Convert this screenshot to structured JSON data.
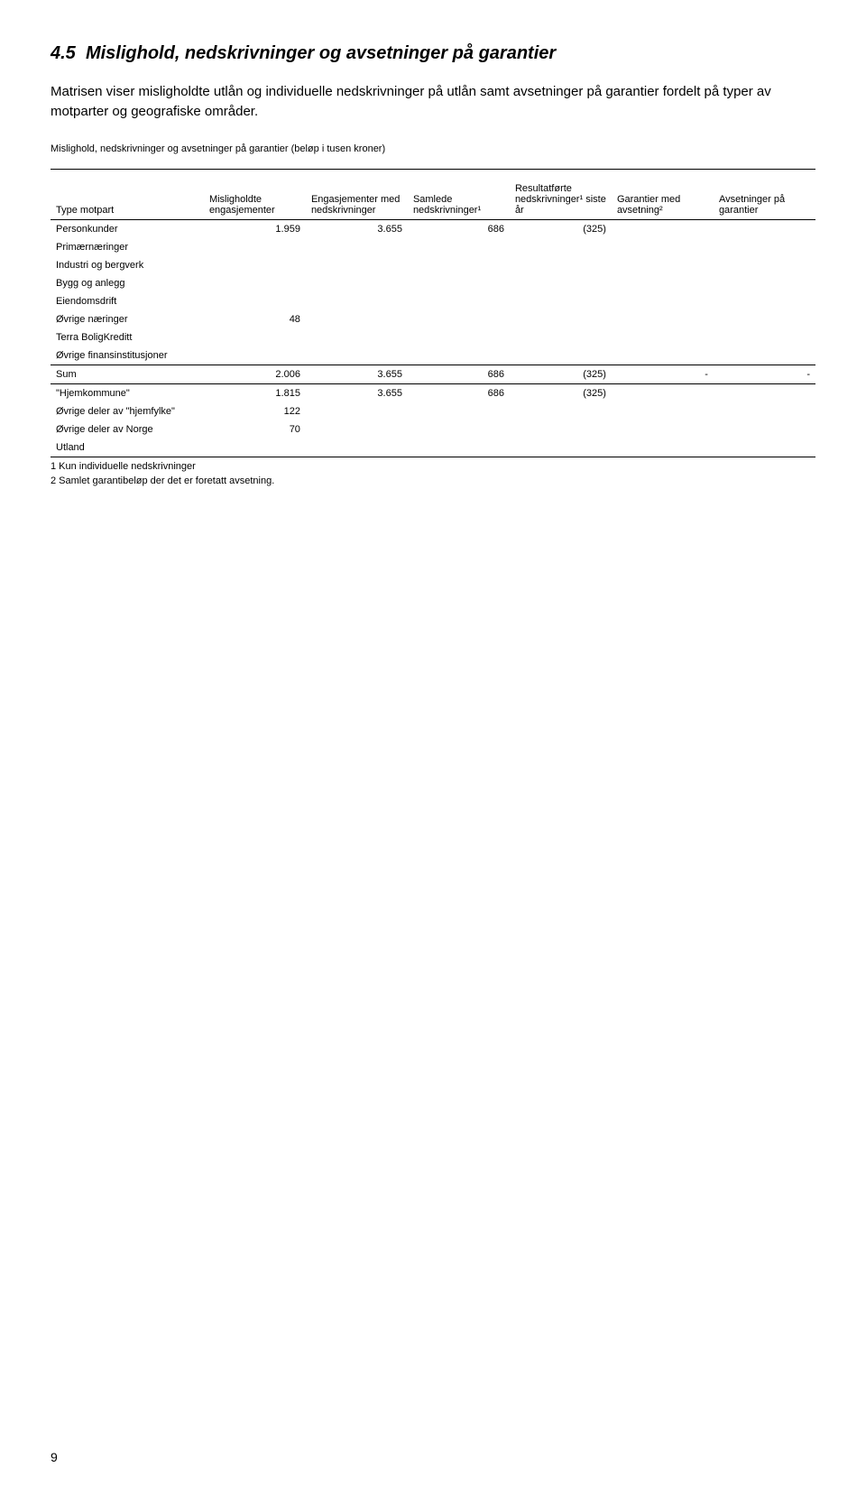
{
  "section": {
    "number": "4.5",
    "title": "Mislighold, nedskrivninger og avsetninger på garantier",
    "intro": "Matrisen viser misligholdte utlån og individuelle nedskrivninger på utlån samt avsetninger på garantier fordelt på typer av motparter og geografiske områder.",
    "table_caption": "Mislighold, nedskrivninger og avsetninger på garantier (beløp i tusen kroner)"
  },
  "columns": [
    "Type motpart",
    "Misligholdte engasjementer",
    "Engasjementer med nedskrivninger",
    "Samlede nedskrivninger¹",
    "Resultatførte nedskrivninger¹ siste år",
    "Garantier med avsetning²",
    "Avsetninger på garantier"
  ],
  "body_rows": [
    {
      "label": "Personkunder",
      "v": [
        "1.959",
        "3.655",
        "686",
        "(325)",
        "",
        ""
      ]
    },
    {
      "label": "Primærnæringer",
      "v": [
        "",
        "",
        "",
        "",
        "",
        ""
      ]
    },
    {
      "label": "Industri og bergverk",
      "v": [
        "",
        "",
        "",
        "",
        "",
        ""
      ]
    },
    {
      "label": "Bygg og anlegg",
      "v": [
        "",
        "",
        "",
        "",
        "",
        ""
      ]
    },
    {
      "label": "Eiendomsdrift",
      "v": [
        "",
        "",
        "",
        "",
        "",
        ""
      ]
    },
    {
      "label": "Øvrige næringer",
      "v": [
        "48",
        "",
        "",
        "",
        "",
        ""
      ]
    },
    {
      "label": "Terra BoligKreditt",
      "v": [
        "",
        "",
        "",
        "",
        "",
        ""
      ]
    },
    {
      "label": "Øvrige finansinstitusjoner",
      "v": [
        "",
        "",
        "",
        "",
        "",
        ""
      ]
    }
  ],
  "sum_row": {
    "label": "Sum",
    "v": [
      "2.006",
      "3.655",
      "686",
      "(325)",
      "-",
      "-"
    ]
  },
  "footer_rows": [
    {
      "label": "\"Hjemkommune\"",
      "v": [
        "1.815",
        "3.655",
        "686",
        "(325)",
        "",
        ""
      ]
    },
    {
      "label": "Øvrige deler av \"hjemfylke\"",
      "v": [
        "122",
        "",
        "",
        "",
        "",
        ""
      ]
    },
    {
      "label": "Øvrige deler av Norge",
      "v": [
        "70",
        "",
        "",
        "",
        "",
        ""
      ]
    },
    {
      "label": "Utland",
      "v": [
        "",
        "",
        "",
        "",
        "",
        ""
      ]
    }
  ],
  "footnotes": [
    "1 Kun individuelle nedskrivninger",
    "2 Samlet garantibeløp der det er foretatt avsetning."
  ],
  "page_number": "9"
}
